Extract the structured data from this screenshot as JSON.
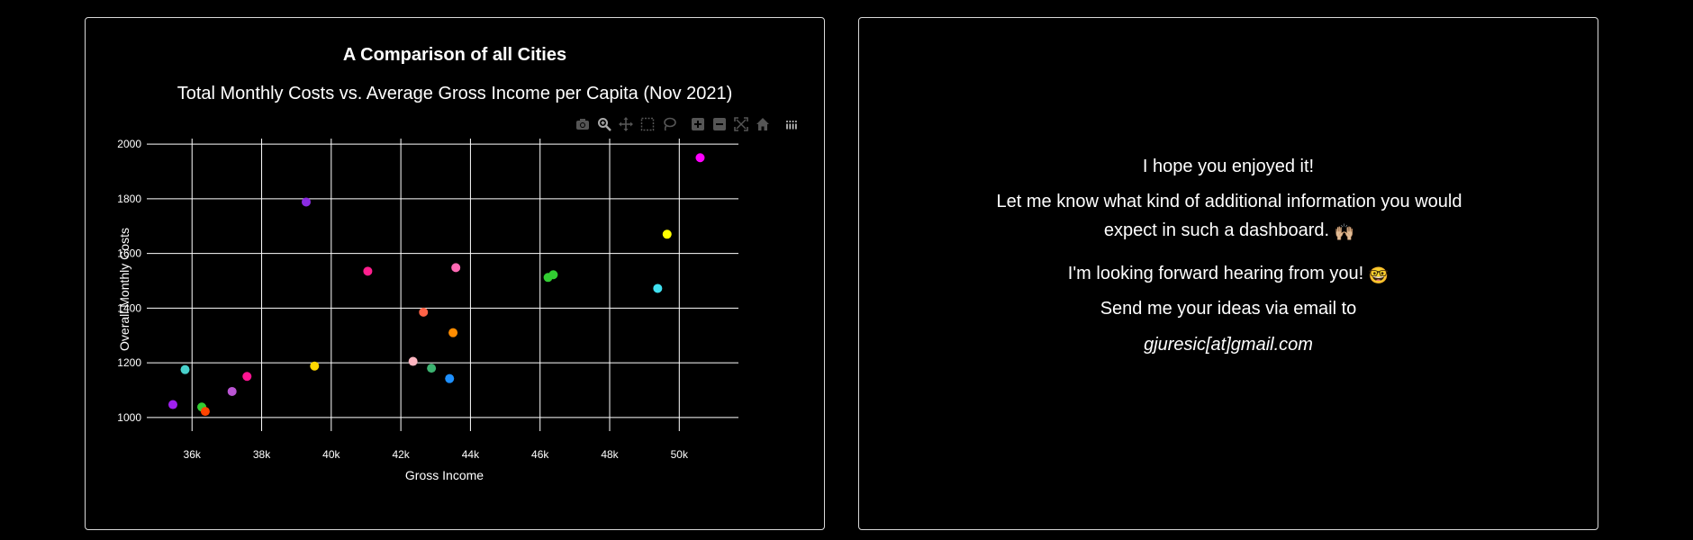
{
  "chart_data": {
    "type": "scatter",
    "title": "A Comparison of all Cities",
    "subtitle": "Total Monthly Costs vs. Average Gross Income per Capita (Nov 2021)",
    "xlabel": "Gross Income",
    "ylabel": "Overall Monthly Costs",
    "xlim": [
      34700,
      51700
    ],
    "ylim": [
      950,
      2020
    ],
    "xticks": [
      36000,
      38000,
      40000,
      42000,
      44000,
      46000,
      48000,
      50000
    ],
    "xtick_labels": [
      "36k",
      "38k",
      "40k",
      "42k",
      "44k",
      "46k",
      "48k",
      "50k"
    ],
    "yticks": [
      1000,
      1200,
      1400,
      1600,
      1800,
      2000
    ],
    "ytick_labels": [
      "1000",
      "1200",
      "1400",
      "1600",
      "1800",
      "2000"
    ],
    "grid": true,
    "points": [
      {
        "x": 35450,
        "y": 1047,
        "color": "#a020f0"
      },
      {
        "x": 35800,
        "y": 1175,
        "color": "#48d1cc"
      },
      {
        "x": 36280,
        "y": 1038,
        "color": "#32cd32"
      },
      {
        "x": 36380,
        "y": 1022,
        "color": "#ff4500"
      },
      {
        "x": 37150,
        "y": 1095,
        "color": "#ba55d3"
      },
      {
        "x": 37580,
        "y": 1150,
        "color": "#ff1493"
      },
      {
        "x": 39280,
        "y": 1788,
        "color": "#8a2be2"
      },
      {
        "x": 39520,
        "y": 1188,
        "color": "#ffd700"
      },
      {
        "x": 41050,
        "y": 1535,
        "color": "#ff1f8e"
      },
      {
        "x": 42350,
        "y": 1205,
        "color": "#ffb6c1"
      },
      {
        "x": 42650,
        "y": 1385,
        "color": "#ff6347"
      },
      {
        "x": 42880,
        "y": 1180,
        "color": "#3cb371"
      },
      {
        "x": 43400,
        "y": 1142,
        "color": "#1e90ff"
      },
      {
        "x": 43500,
        "y": 1310,
        "color": "#ff8c00"
      },
      {
        "x": 43580,
        "y": 1548,
        "color": "#ff69b4"
      },
      {
        "x": 46230,
        "y": 1512,
        "color": "#32cd32"
      },
      {
        "x": 46380,
        "y": 1522,
        "color": "#32cd32"
      },
      {
        "x": 49380,
        "y": 1472,
        "color": "#40e0f0"
      },
      {
        "x": 49650,
        "y": 1670,
        "color": "#ffff00"
      },
      {
        "x": 50600,
        "y": 1950,
        "color": "#ff00ff"
      }
    ]
  },
  "modebar": {
    "icons": [
      "camera-icon",
      "zoom-icon",
      "pan-icon",
      "box-select-icon",
      "lasso-select-icon",
      "zoom-in-icon",
      "zoom-out-icon",
      "autoscale-icon",
      "reset-axes-icon",
      "plotly-logo-icon"
    ]
  },
  "message": {
    "line1": "I hope you enjoyed it!",
    "line2": "Let me know what kind of additional information you would expect in such a dashboard.",
    "line2_emoji": "🙌🏼",
    "line3": "I'm looking forward hearing from you!",
    "line3_emoji": "🤓",
    "line4": "Send me your ideas via email to",
    "email": "gjuresic[at]gmail.com"
  },
  "colors": {
    "background": "#000000",
    "border": "#d9d9d9",
    "grid": "#ffffff",
    "text": "#ffffff"
  }
}
